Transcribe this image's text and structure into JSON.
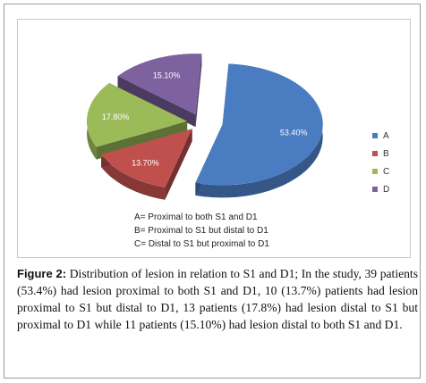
{
  "chart_data": {
    "type": "pie",
    "categories": [
      "A",
      "B",
      "C",
      "D"
    ],
    "values": [
      53.4,
      13.7,
      17.8,
      15.1
    ],
    "data_labels": [
      "53.40%",
      "13.70%",
      "17.80%",
      "15.10%"
    ],
    "colors": [
      "#4a7cc1",
      "#c0504d",
      "#9bbb59",
      "#7e62a0"
    ],
    "legend_placement": "right",
    "style": "3d-exploded",
    "annotations": [
      "A= Proximal to both S1 and D1",
      "B= Proximal to S1 but distal to D1",
      "C= Distal to S1 but proximal to D1"
    ]
  },
  "caption": {
    "label": "Figure 2:",
    "text": "Distribution of lesion in relation to S1 and D1; In the study, 39 patients (53.4%) had lesion proximal to both S1 and D1, 10 (13.7%) patients had lesion proximal to S1 but distal to D1, 13 patients (17.8%) had lesion distal to S1 but proximal to D1 while 11 patients (15.10%) had lesion distal to both S1 and D1."
  }
}
